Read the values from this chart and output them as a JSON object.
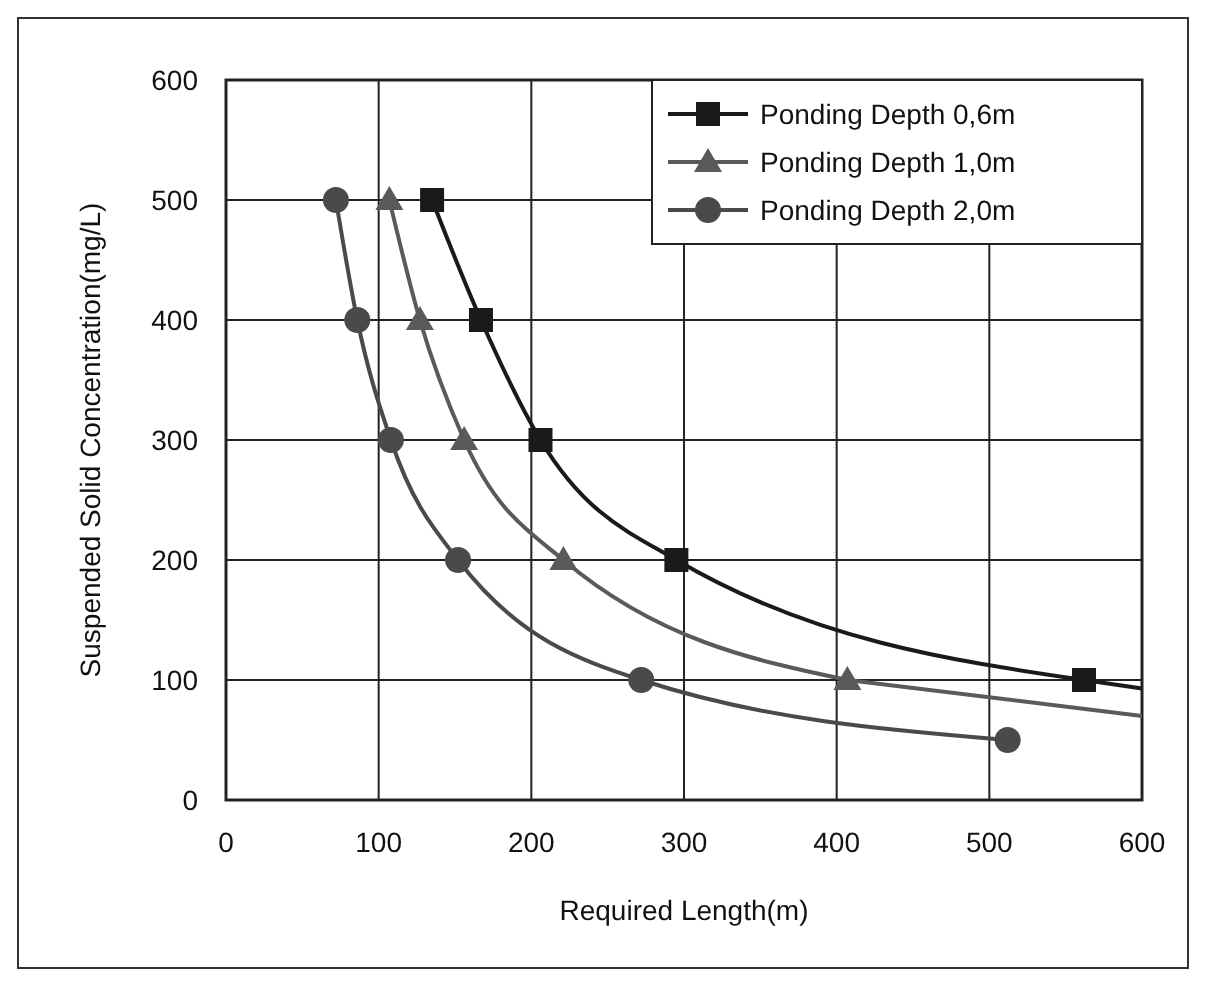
{
  "chart_data": {
    "type": "line",
    "xlabel": "Required Length(m)",
    "ylabel": "Suspended Solid Concentration(mg/L)",
    "xlim": [
      0,
      600
    ],
    "xticks": [
      0,
      100,
      200,
      300,
      400,
      500,
      600
    ],
    "ylim": [
      0,
      600
    ],
    "yticks": [
      0,
      100,
      200,
      300,
      400,
      500,
      600
    ],
    "grid": true,
    "legend": "top right",
    "series": [
      {
        "name": "Ponding Depth  0,6m",
        "color": "#1a1a1a",
        "marker": "square",
        "x": [
          135,
          167,
          206,
          295,
          562
        ],
        "values": [
          500,
          400,
          300,
          200,
          100
        ]
      },
      {
        "name": "Ponding Depth  1,0m",
        "color": "#5a5a5a",
        "marker": "triangle",
        "x": [
          107,
          127,
          156,
          221,
          407
        ],
        "values": [
          500,
          400,
          300,
          200,
          100
        ]
      },
      {
        "name": "Ponding Depth  2,0m",
        "color": "#4a4a4a",
        "marker": "circle",
        "x": [
          72,
          86,
          108,
          152,
          272,
          512
        ],
        "values": [
          500,
          400,
          300,
          200,
          100,
          50
        ]
      },
      {
        "color": "#1a1a1a",
        "marker": "none",
        "x": [
          562,
          600
        ],
        "values": [
          100,
          93
        ]
      },
      {
        "color": "#5a5a5a",
        "marker": "none",
        "x": [
          407,
          600
        ],
        "values": [
          100,
          70
        ]
      }
    ]
  }
}
